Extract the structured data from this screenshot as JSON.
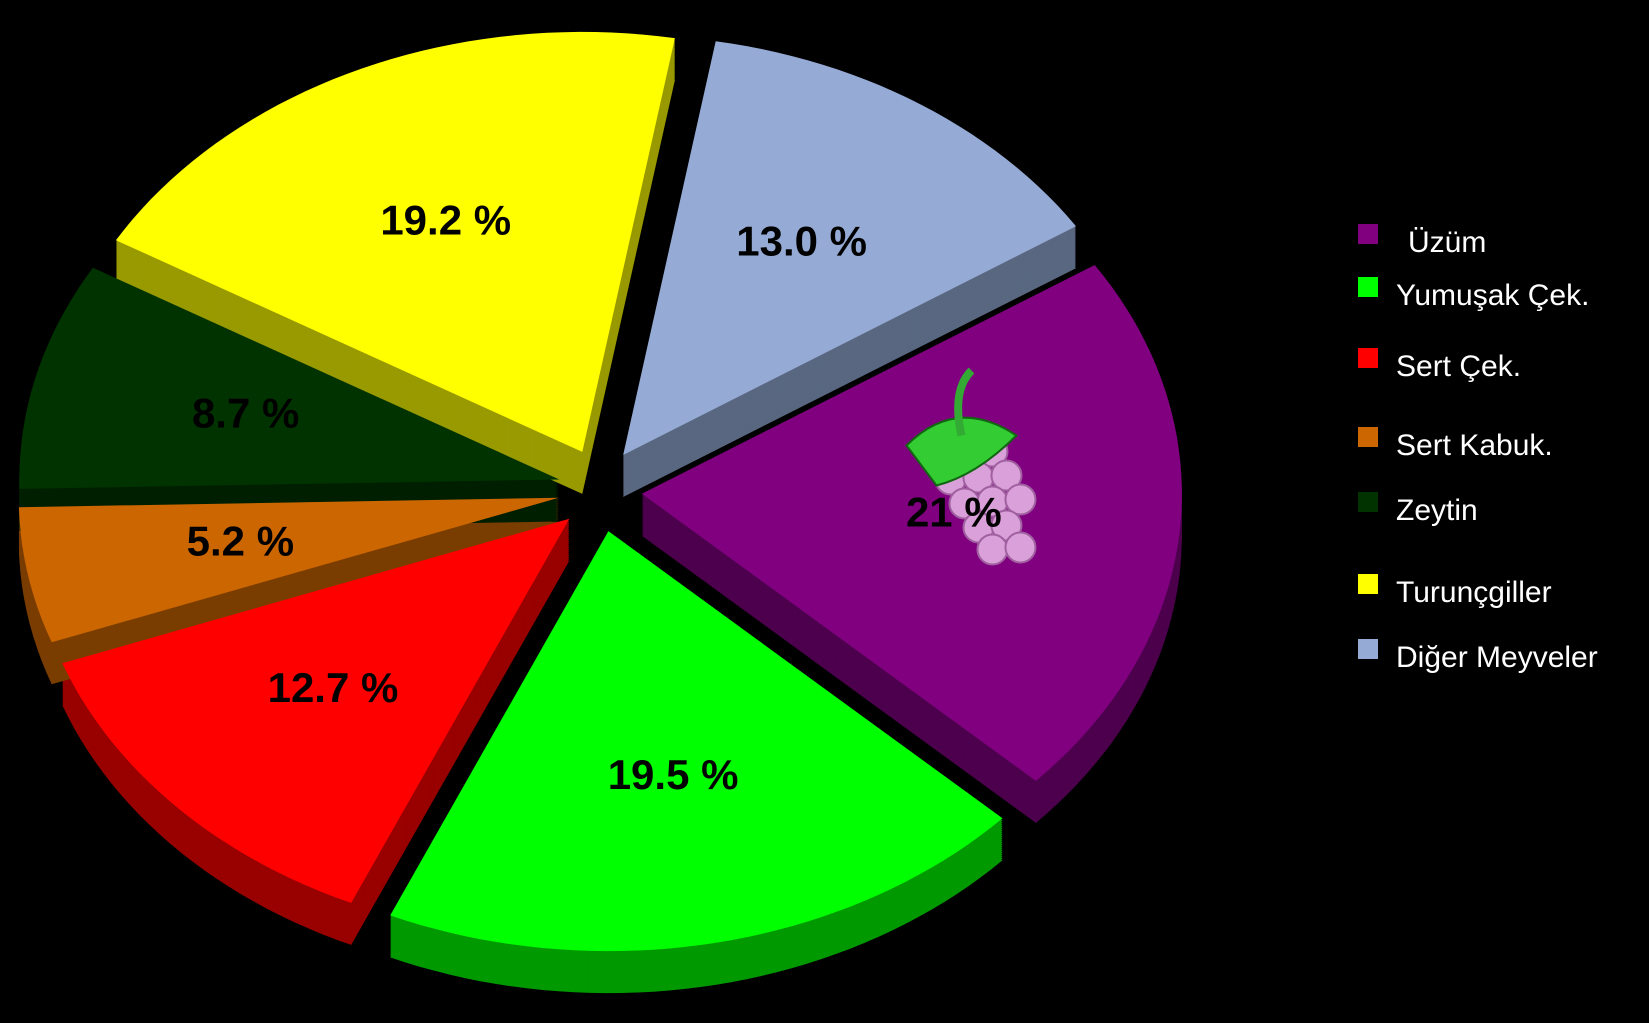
{
  "chart_data": {
    "type": "pie",
    "categories": [
      "Üzüm",
      "Yumuşak Çek.",
      "Sert Çek.",
      "Sert Kabuk.",
      "Zeytin",
      "Turunçgiller",
      "Diğer Meyveler"
    ],
    "values": [
      21,
      19.5,
      12.7,
      5.2,
      8.7,
      19.2,
      13.0
    ],
    "value_labels": [
      "21 %",
      "19.5 %",
      "12.7 %",
      "5.2 %",
      "8.7 %",
      "19.2 %",
      "13.0 %"
    ],
    "colors": [
      "#800080",
      "#00ff00",
      "#ff0000",
      "#cc6600",
      "#003300",
      "#ffff00",
      "#95abd5"
    ],
    "legend": "right"
  }
}
